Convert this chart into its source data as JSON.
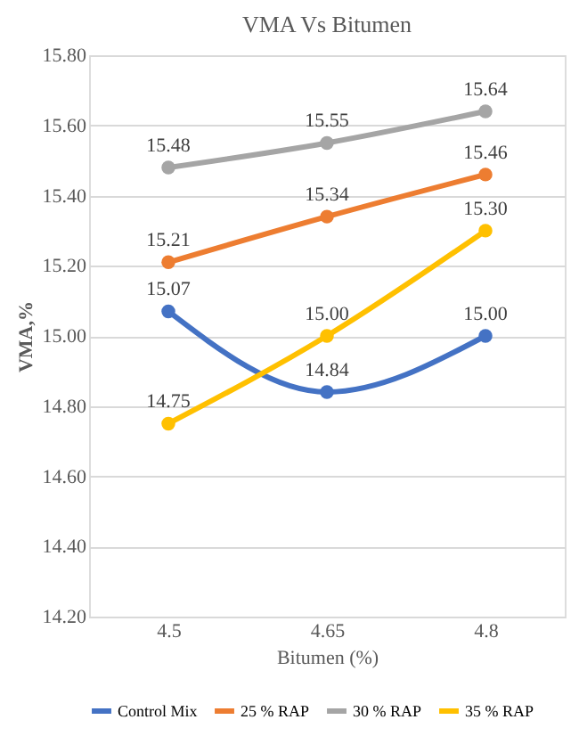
{
  "chart_data": {
    "type": "line",
    "title": "VMA  Vs Bitumen",
    "xlabel": "Bitumen (%)",
    "ylabel": "VMA,%",
    "categories": [
      "4.5",
      "4.65",
      "4.8"
    ],
    "series": [
      {
        "name": "Control Mix",
        "color": "#4472c4",
        "values": [
          15.07,
          14.84,
          15.0
        ],
        "value_labels": [
          "15.07",
          "14.84",
          "15.00"
        ]
      },
      {
        "name": "25 % RAP",
        "color": "#ed7d31",
        "values": [
          15.21,
          15.34,
          15.46
        ]
      },
      {
        "name": "30 % RAP",
        "color": "#a5a5a5",
        "values": [
          15.48,
          15.55,
          15.64
        ]
      },
      {
        "name": "35 % RAP",
        "color": "#ffc000",
        "values": [
          14.75,
          15.0,
          15.3
        ],
        "value_labels": [
          "14.75",
          "15.00",
          "15.30"
        ]
      }
    ],
    "ylim": [
      14.2,
      15.8
    ],
    "yticks": [
      {
        "value": 14.2,
        "label": "14.20"
      },
      {
        "value": 14.4,
        "label": "14.40"
      },
      {
        "value": 14.6,
        "label": "14.60"
      },
      {
        "value": 14.8,
        "label": "14.80"
      },
      {
        "value": 15.0,
        "label": "15.00"
      },
      {
        "value": 15.2,
        "label": "15.20"
      },
      {
        "value": 15.4,
        "label": "15.40"
      },
      {
        "value": 15.6,
        "label": "15.60"
      },
      {
        "value": 15.8,
        "label": "15.80"
      }
    ],
    "grid": "y",
    "legend": "bottom",
    "marker": "circle",
    "line_style": "solid",
    "data_labels": true
  }
}
